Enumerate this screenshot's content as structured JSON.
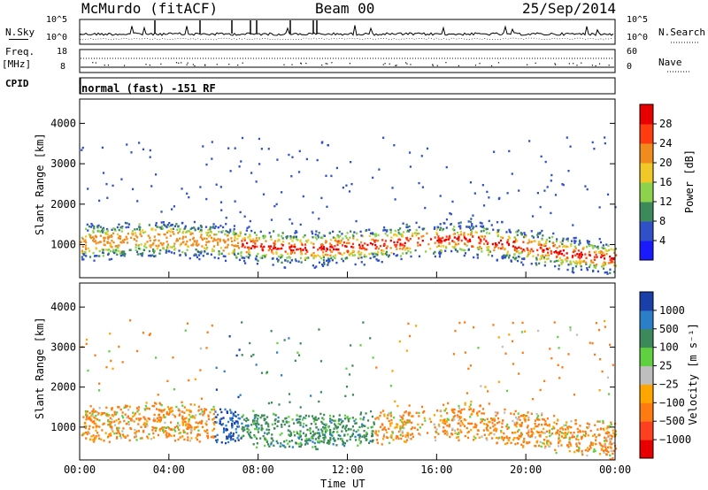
{
  "header": {
    "station": "McMurdo (fitACF)",
    "beam": "Beam 00",
    "date": "25/Sep/2014"
  },
  "top_labels": {
    "nsky": "N.Sky",
    "freq": "Freq.",
    "freq_unit": "[MHz]",
    "cpid": "CPID",
    "nsearch": "N.Search",
    "nave": "Nave",
    "cpid_value": "normal (fast) -151 RF",
    "nsky_ticks_left": [
      "10^5",
      "10^0"
    ],
    "nsky_ticks_right": [
      "10^5",
      "10^0"
    ],
    "freq_ticks": [
      "18",
      "8"
    ],
    "nave_ticks": [
      "60",
      "0"
    ]
  },
  "chart_data": [
    {
      "type": "heatmap",
      "title": "",
      "xlabel": "",
      "ylabel": "Slant Range [km]",
      "y_ticks": [
        "1000",
        "2000",
        "3000",
        "4000"
      ],
      "ylim": [
        180,
        4600
      ],
      "colorbar": {
        "label": "Power [dB]",
        "ticks": [
          "4",
          "8",
          "12",
          "16",
          "20",
          "24",
          "28"
        ],
        "colors": [
          "#1a1aff",
          "#3050c8",
          "#3c8a5a",
          "#8cd24c",
          "#f0c828",
          "#f08c1e",
          "#ff3c10",
          "#e80000"
        ]
      }
    },
    {
      "type": "heatmap",
      "title": "",
      "xlabel": "Time UT",
      "ylabel": "Slant Range [km]",
      "x_ticks": [
        "00:00",
        "04:00",
        "08:00",
        "12:00",
        "16:00",
        "20:00",
        "00:00"
      ],
      "y_ticks": [
        "1000",
        "2000",
        "3000",
        "4000"
      ],
      "ylim": [
        180,
        4600
      ],
      "colorbar": {
        "label": "Velocity [m s⁻¹]",
        "ticks": [
          "1000",
          "500",
          "100",
          "25",
          "−25",
          "−100",
          "−500",
          "−1000"
        ],
        "colors": [
          "#1b3fa8",
          "#2b7fc8",
          "#3c8a5a",
          "#5fd040",
          "#bebebe",
          "#ffa500",
          "#ff7a10",
          "#ff4020",
          "#e80000"
        ]
      }
    }
  ]
}
